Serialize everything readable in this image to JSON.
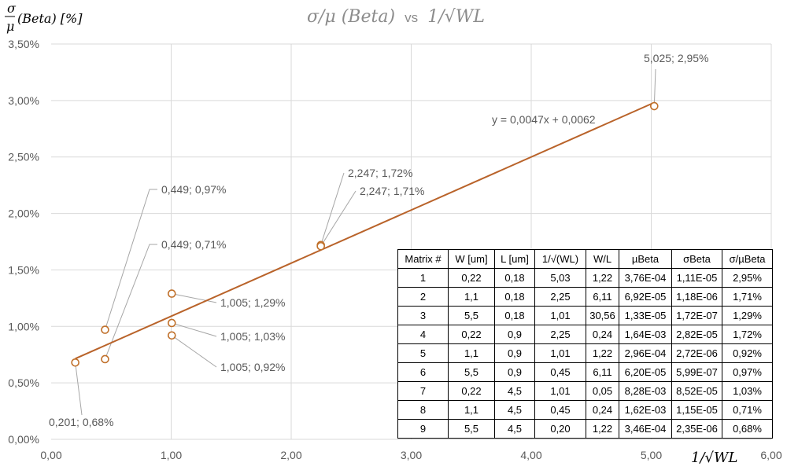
{
  "chart_data": {
    "type": "scatter",
    "title_main": "σ/μ (Beta)",
    "title_vs": "vs",
    "title_x": "1/√WL",
    "ylabel": "σ/μ(Beta) [%]",
    "ylabel_sigma": "σ",
    "ylabel_mu": "μ",
    "ylabel_rest": "(Beta) [%]",
    "xlabel": "1/√WL",
    "xlim": [
      0,
      6
    ],
    "ylim": [
      0,
      0.035
    ],
    "x_ticks": [
      "0,00",
      "1,00",
      "2,00",
      "3,00",
      "4,00",
      "5,00",
      "6,00"
    ],
    "y_ticks": [
      "0,00%",
      "0,50%",
      "1,00%",
      "1,50%",
      "2,00%",
      "2,50%",
      "3,00%",
      "3,50%"
    ],
    "grid": true,
    "points": [
      {
        "x": 5.025,
        "y": 0.0295,
        "label": "5,025; 2,95%"
      },
      {
        "x": 2.247,
        "y": 0.0172,
        "label": "2,247; 1,72%"
      },
      {
        "x": 2.247,
        "y": 0.0171,
        "label": "2,247; 1,71%"
      },
      {
        "x": 1.005,
        "y": 0.0129,
        "label": "1,005; 1,29%"
      },
      {
        "x": 1.005,
        "y": 0.0103,
        "label": "1,005; 1,03%"
      },
      {
        "x": 1.005,
        "y": 0.0092,
        "label": "1,005; 0,92%"
      },
      {
        "x": 0.449,
        "y": 0.0097,
        "label": "0,449; 0,97%"
      },
      {
        "x": 0.449,
        "y": 0.0071,
        "label": "0,449; 0,71%"
      },
      {
        "x": 0.201,
        "y": 0.0068,
        "label": "0,201; 0,68%"
      }
    ],
    "trendline": {
      "slope": 0.0047,
      "intercept": 0.0062,
      "x_from": 0.201,
      "x_to": 5.025,
      "equation": "y = 0,0047x + 0,0062"
    },
    "colors": {
      "marker": "#c0702a",
      "trend": "#b9632a",
      "grid": "#d9d9d9",
      "text": "#595959",
      "leader": "#a6a6a6"
    }
  },
  "table": {
    "headers": [
      "Matrix #",
      "W [um]",
      "L [um]",
      "1/√(WL)",
      "W/L",
      "µBeta",
      "σBeta",
      "σ/µBeta"
    ],
    "rows": [
      [
        "1",
        "0,22",
        "0,18",
        "5,03",
        "1,22",
        "3,76E-04",
        "1,11E-05",
        "2,95%"
      ],
      [
        "2",
        "1,1",
        "0,18",
        "2,25",
        "6,11",
        "6,92E-05",
        "1,18E-06",
        "1,71%"
      ],
      [
        "3",
        "5,5",
        "0,18",
        "1,01",
        "30,56",
        "1,33E-05",
        "1,72E-07",
        "1,29%"
      ],
      [
        "4",
        "0,22",
        "0,9",
        "2,25",
        "0,24",
        "1,64E-03",
        "2,82E-05",
        "1,72%"
      ],
      [
        "5",
        "1,1",
        "0,9",
        "1,01",
        "1,22",
        "2,96E-04",
        "2,72E-06",
        "0,92%"
      ],
      [
        "6",
        "5,5",
        "0,9",
        "0,45",
        "6,11",
        "6,20E-05",
        "5,99E-07",
        "0,97%"
      ],
      [
        "7",
        "0,22",
        "4,5",
        "1,01",
        "0,05",
        "8,28E-03",
        "8,52E-05",
        "1,03%"
      ],
      [
        "8",
        "1,1",
        "4,5",
        "0,45",
        "0,24",
        "1,62E-03",
        "1,15E-05",
        "0,71%"
      ],
      [
        "9",
        "5,5",
        "4,5",
        "0,20",
        "1,22",
        "3,46E-04",
        "2,35E-06",
        "0,68%"
      ]
    ]
  }
}
